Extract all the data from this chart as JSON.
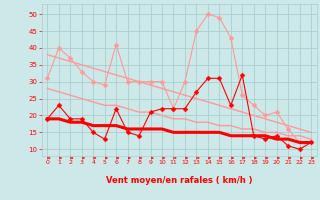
{
  "x": [
    0,
    1,
    2,
    3,
    4,
    5,
    6,
    7,
    8,
    9,
    10,
    11,
    12,
    13,
    14,
    15,
    16,
    17,
    18,
    19,
    20,
    21,
    22,
    23
  ],
  "series": [
    {
      "name": "rafales_max",
      "color": "#ff9999",
      "lw": 0.8,
      "ms": 2.5,
      "values": [
        31,
        40,
        37,
        33,
        30,
        29,
        41,
        30,
        30,
        30,
        30,
        22,
        30,
        45,
        50,
        49,
        43,
        26,
        23,
        20,
        21,
        16,
        12,
        12
      ]
    },
    {
      "name": "trend_upper",
      "color": "#ff9999",
      "lw": 1.0,
      "ms": 0,
      "values": [
        38,
        37,
        36,
        35,
        34,
        33,
        32,
        31,
        30,
        29,
        28,
        27,
        26,
        25,
        24,
        23,
        22,
        21,
        20,
        19,
        18,
        17,
        16,
        15
      ]
    },
    {
      "name": "trend_lower",
      "color": "#ff9999",
      "lw": 1.0,
      "ms": 0,
      "values": [
        28,
        27,
        26,
        25,
        24,
        23,
        23,
        22,
        21,
        21,
        20,
        19,
        19,
        18,
        18,
        17,
        17,
        16,
        16,
        15,
        15,
        14,
        14,
        13
      ]
    },
    {
      "name": "vent_moyen_line",
      "color": "#ff0000",
      "lw": 2.2,
      "ms": 0,
      "values": [
        19,
        19,
        18,
        18,
        17,
        17,
        17,
        16,
        16,
        16,
        16,
        15,
        15,
        15,
        15,
        15,
        14,
        14,
        14,
        14,
        13,
        13,
        12,
        12
      ]
    },
    {
      "name": "vent_moyen_pts",
      "color": "#ff0000",
      "lw": 0.8,
      "ms": 2.5,
      "values": [
        19,
        23,
        19,
        19,
        15,
        13,
        22,
        15,
        14,
        21,
        22,
        22,
        22,
        27,
        31,
        31,
        23,
        32,
        14,
        13,
        14,
        11,
        10,
        12
      ]
    }
  ],
  "xlim": [
    -0.5,
    23.5
  ],
  "ylim": [
    8,
    53
  ],
  "yticks": [
    10,
    15,
    20,
    25,
    30,
    35,
    40,
    45,
    50
  ],
  "xticks": [
    0,
    1,
    2,
    3,
    4,
    5,
    6,
    7,
    8,
    9,
    10,
    11,
    12,
    13,
    14,
    15,
    16,
    17,
    18,
    19,
    20,
    21,
    22,
    23
  ],
  "xlabel": "Vent moyen/en rafales ( km/h )",
  "bg_color": "#cce8e8",
  "grid_color": "#aacece",
  "tick_color": "#ff0000",
  "label_color": "#ff0000",
  "arrow_color": "#ff0000"
}
